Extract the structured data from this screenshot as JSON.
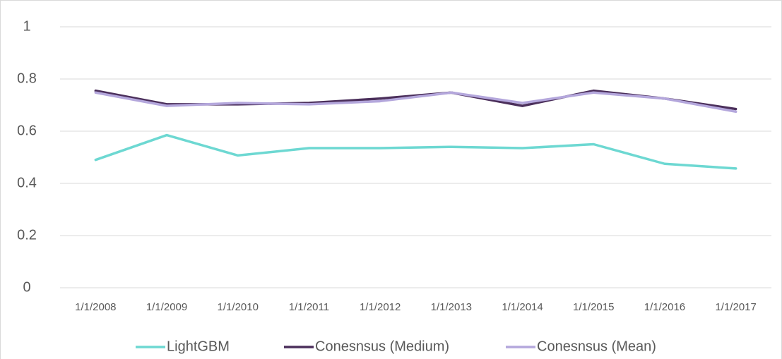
{
  "chart_data": {
    "type": "line",
    "categories": [
      "1/1/2008",
      "1/1/2009",
      "1/1/2010",
      "1/1/2011",
      "1/1/2012",
      "1/1/2013",
      "1/1/2014",
      "1/1/2015",
      "1/1/2016",
      "1/1/2017"
    ],
    "series": [
      {
        "name": "LightGBM",
        "color": "#6dd8d2",
        "values": [
          0.49,
          0.585,
          0.507,
          0.535,
          0.535,
          0.54,
          0.535,
          0.55,
          0.475,
          0.457
        ]
      },
      {
        "name": "Conesnsus (Medium)",
        "color": "#4b2f5b",
        "values": [
          0.755,
          0.703,
          0.703,
          0.708,
          0.725,
          0.748,
          0.697,
          0.755,
          0.725,
          0.685
        ]
      },
      {
        "name": "Conesnsus (Mean)",
        "color": "#b4a7dc",
        "values": [
          0.748,
          0.697,
          0.708,
          0.703,
          0.715,
          0.748,
          0.708,
          0.748,
          0.725,
          0.675
        ]
      }
    ],
    "ylim": [
      0,
      1
    ],
    "yticks": [
      0,
      0.2,
      0.4,
      0.6,
      0.8,
      1
    ],
    "grid": true,
    "legend": "bottom"
  }
}
